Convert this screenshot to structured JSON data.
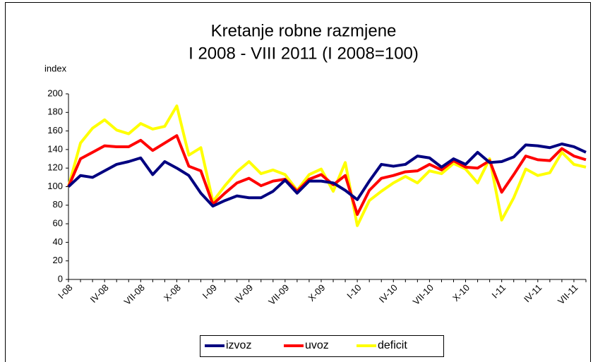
{
  "chart_data": {
    "type": "line",
    "title": "Kretanje robne razmjene",
    "subtitle": "I 2008 - VIII 2011 (I 2008=100)",
    "y_label": "index",
    "categories": [
      "I-08",
      null,
      null,
      "IV-08",
      null,
      null,
      "VII-08",
      null,
      null,
      "X-08",
      null,
      null,
      "I-09",
      null,
      null,
      "IV-09",
      null,
      null,
      "VII-09",
      null,
      null,
      "X-09",
      null,
      null,
      "I-10",
      null,
      null,
      "IV-10",
      null,
      null,
      "VII-10",
      null,
      null,
      "X-10",
      null,
      null,
      "I-11",
      null,
      null,
      "IV-11",
      null,
      null,
      "VII-11",
      null
    ],
    "series": [
      {
        "name": "izvoz",
        "color": "#000080",
        "values": [
          100,
          112,
          110,
          117,
          124,
          127,
          131,
          113,
          127,
          120,
          112,
          93,
          79,
          85,
          90,
          88,
          88,
          95,
          107,
          93,
          106,
          106,
          104,
          96,
          86,
          106,
          124,
          122,
          124,
          133,
          131,
          121,
          130,
          124,
          137,
          126,
          127,
          132,
          145,
          144,
          142,
          146,
          143,
          137
        ]
      },
      {
        "name": "uvoz",
        "color": "#ff0000",
        "values": [
          100,
          130,
          137,
          144,
          143,
          143,
          150,
          139,
          147,
          155,
          122,
          117,
          81,
          93,
          104,
          109,
          101,
          106,
          108,
          95,
          108,
          113,
          102,
          112,
          70,
          96,
          109,
          112,
          116,
          117,
          124,
          118,
          128,
          121,
          120,
          128,
          94,
          113,
          133,
          129,
          128,
          141,
          133,
          129
        ]
      },
      {
        "name": "deficit",
        "color": "#ffff00",
        "values": [
          100,
          147,
          163,
          172,
          161,
          157,
          168,
          162,
          165,
          187,
          134,
          142,
          84,
          101,
          116,
          127,
          114,
          118,
          113,
          96,
          113,
          119,
          95,
          126,
          58,
          85,
          95,
          104,
          111,
          104,
          117,
          114,
          125,
          119,
          104,
          130,
          64,
          88,
          119,
          112,
          115,
          137,
          124,
          121
        ]
      }
    ],
    "ylim": [
      0,
      200
    ],
    "yticks": [
      0,
      20,
      40,
      60,
      80,
      100,
      120,
      140,
      160,
      180,
      200
    ],
    "grid": false,
    "legend": "bottom"
  }
}
